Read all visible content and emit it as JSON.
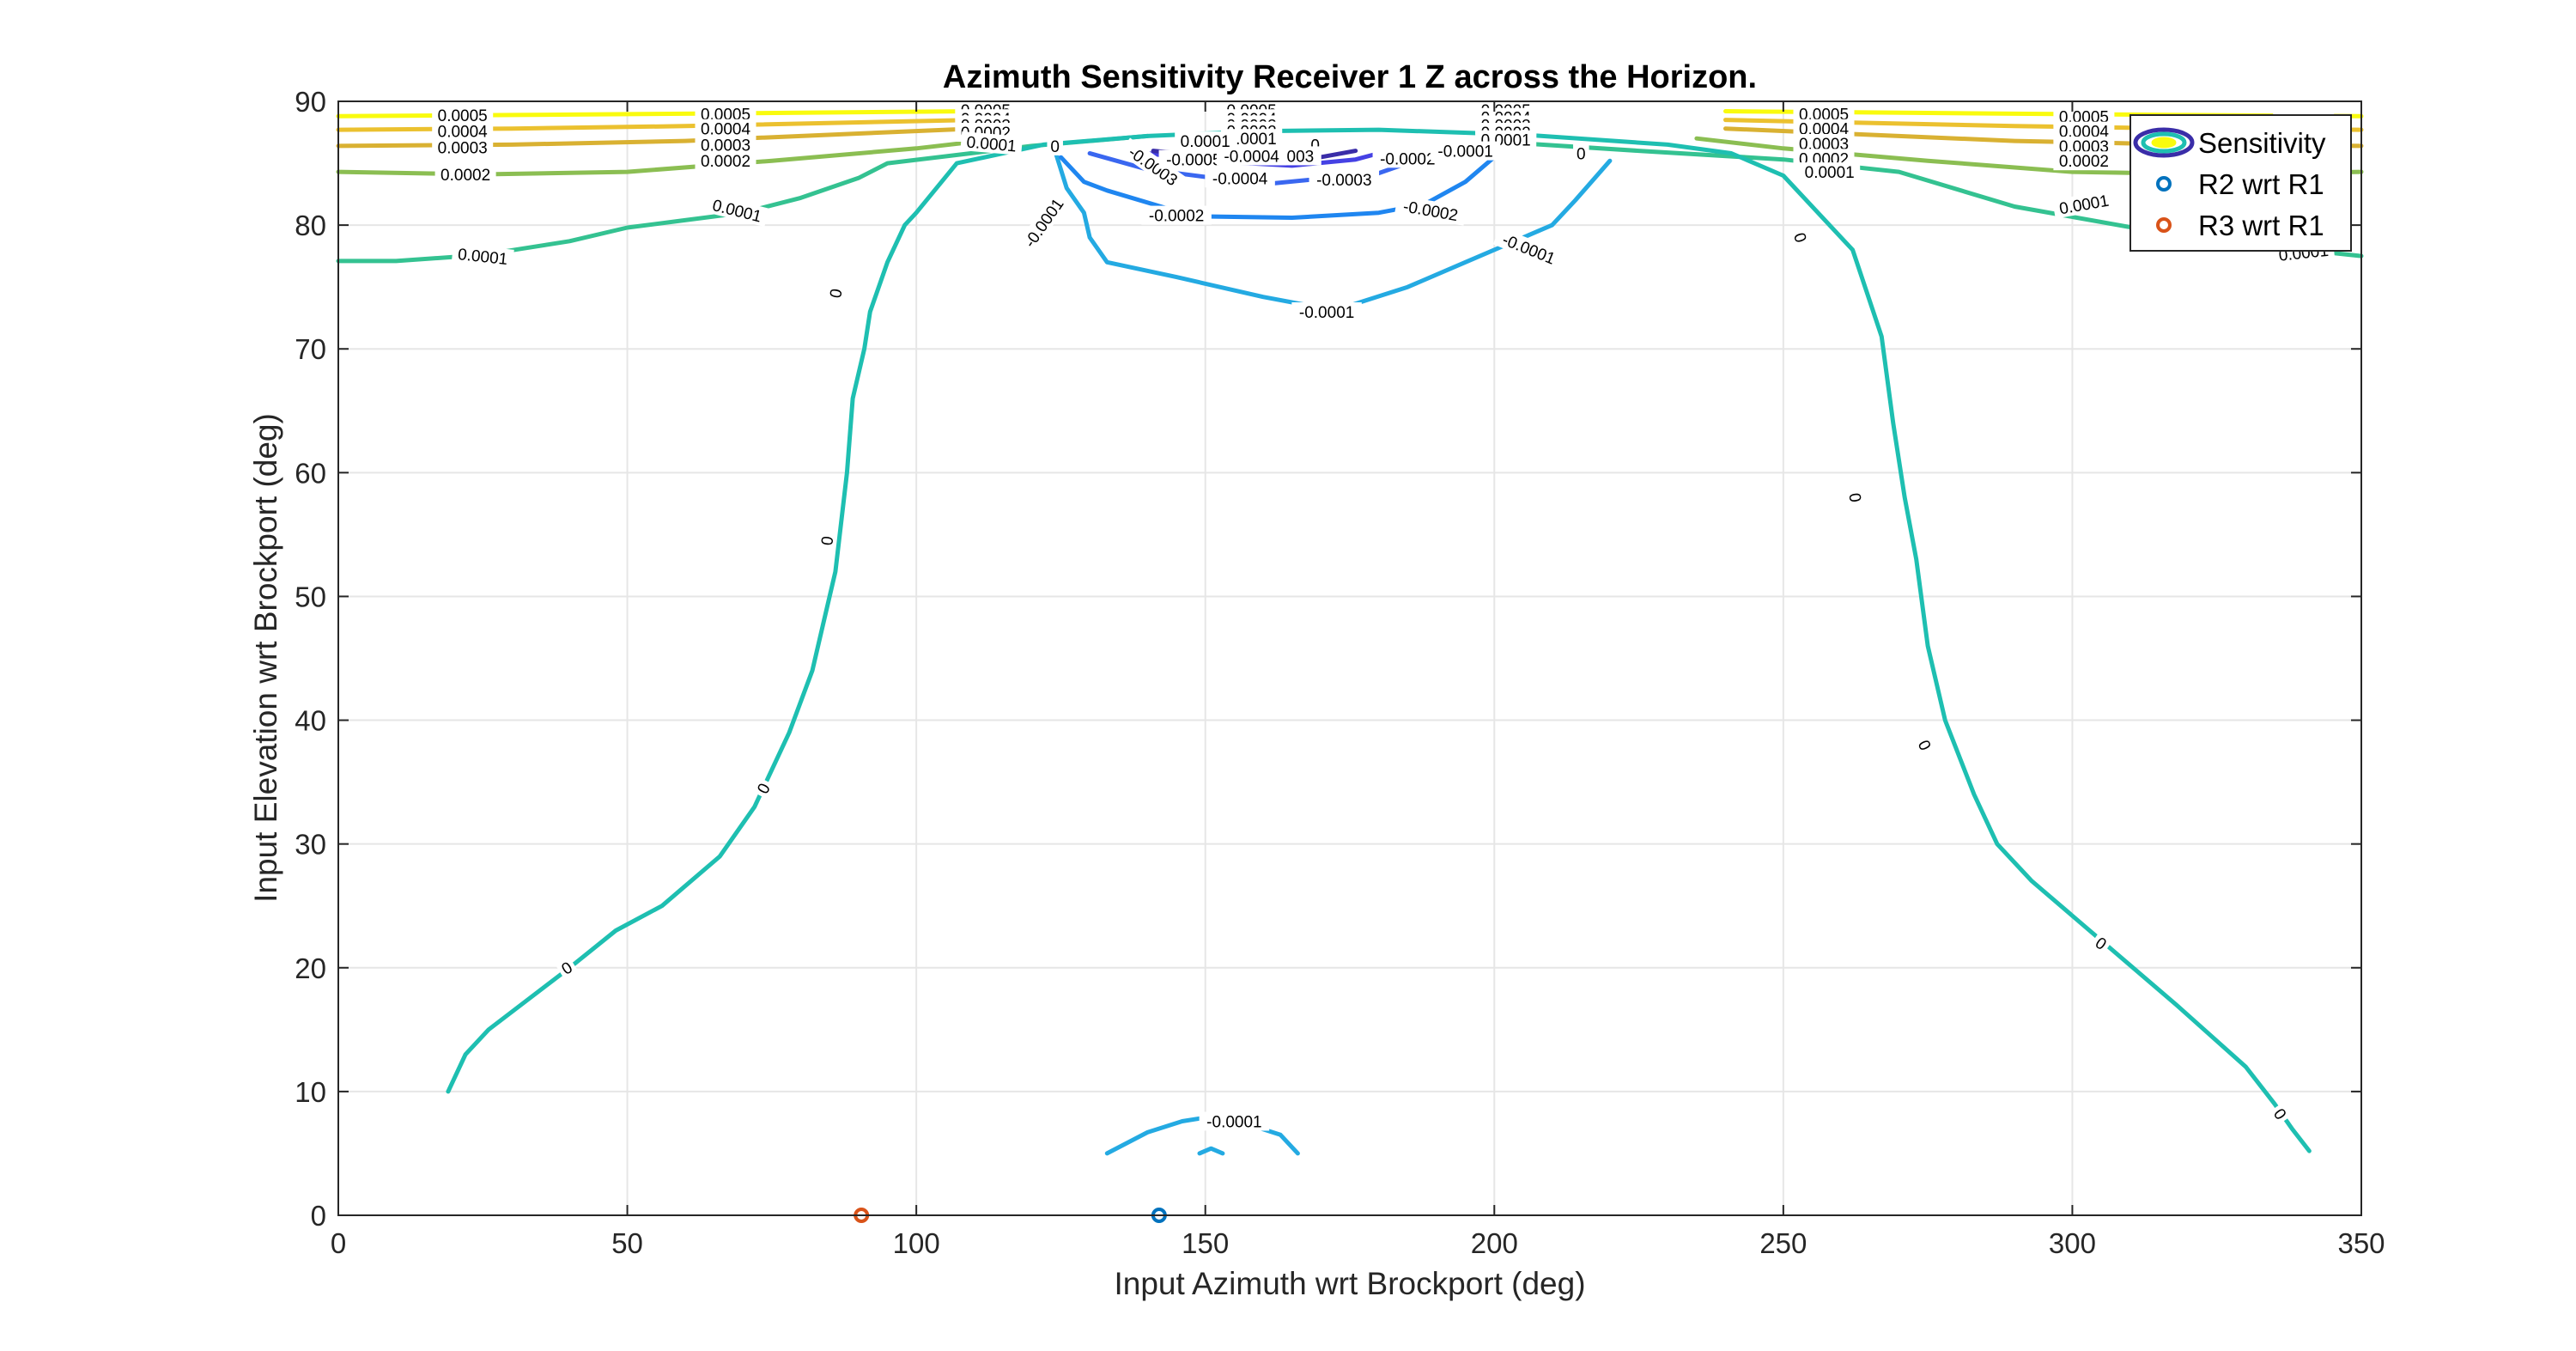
{
  "chart_data": {
    "type": "contour",
    "title": "Azimuth Sensitivity Receiver 1 Z across the Horizon.",
    "xlabel": "Input Azimuth wrt Brockport (deg)",
    "ylabel": "Input Elevation wrt Brockport (deg)",
    "xlim": [
      0,
      350
    ],
    "ylim": [
      0,
      90
    ],
    "xticks": [
      0,
      50,
      100,
      150,
      200,
      250,
      300,
      350
    ],
    "yticks": [
      0,
      10,
      20,
      30,
      40,
      50,
      60,
      70,
      80,
      90
    ],
    "grid": true,
    "legend_position": "top-right",
    "legend": [
      {
        "label": "Sensitivity",
        "kind": "contour"
      },
      {
        "label": "R2 wrt R1",
        "kind": "marker",
        "color": "#0072bd"
      },
      {
        "label": "R3 wrt R1",
        "kind": "marker",
        "color": "#d95319"
      }
    ],
    "contours": [
      {
        "level": "0.0005",
        "color": "#f9fb0e",
        "lines": [
          [
            [
              0,
              88.8
            ],
            [
              30,
              88.9
            ],
            [
              60,
              89.0
            ],
            [
              110,
              89.2
            ]
          ],
          [
            [
              350,
              88.8
            ],
            [
              320,
              88.9
            ],
            [
              290,
              89.0
            ],
            [
              240,
              89.2
            ]
          ]
        ]
      },
      {
        "level": "0.0004",
        "color": "#ebc12f",
        "lines": [
          [
            [
              0,
              87.7
            ],
            [
              30,
              87.8
            ],
            [
              60,
              88.0
            ],
            [
              110,
              88.5
            ]
          ],
          [
            [
              350,
              87.7
            ],
            [
              320,
              87.8
            ],
            [
              290,
              88.0
            ],
            [
              240,
              88.5
            ]
          ]
        ]
      },
      {
        "level": "0.0003",
        "color": "#d9b132",
        "lines": [
          [
            [
              0,
              86.4
            ],
            [
              30,
              86.5
            ],
            [
              60,
              86.8
            ],
            [
              110,
              87.8
            ]
          ],
          [
            [
              350,
              86.4
            ],
            [
              320,
              86.5
            ],
            [
              290,
              86.8
            ],
            [
              240,
              87.8
            ]
          ]
        ]
      },
      {
        "level": "0.0002",
        "color": "#8bbe52",
        "lines": [
          [
            [
              0,
              84.3
            ],
            [
              25,
              84.1
            ],
            [
              50,
              84.3
            ],
            [
              75,
              85.2
            ],
            [
              100,
              86.2
            ],
            [
              115,
              87.0
            ]
          ],
          [
            [
              350,
              84.3
            ],
            [
              325,
              84.1
            ],
            [
              300,
              84.3
            ],
            [
              275,
              85.2
            ],
            [
              250,
              86.2
            ],
            [
              235,
              87.0
            ]
          ]
        ]
      },
      {
        "level": "0.0001",
        "color": "#34c291",
        "lines": [
          [
            [
              0,
              77.1
            ],
            [
              10,
              77.1
            ],
            [
              25,
              77.6
            ],
            [
              40,
              78.7
            ],
            [
              50,
              79.8
            ],
            [
              70,
              81.0
            ],
            [
              80,
              82.2
            ],
            [
              90,
              83.8
            ],
            [
              95,
              85.0
            ],
            [
              120,
              86.4
            ],
            [
              140,
              87.2
            ]
          ],
          [
            [
              350,
              77.5
            ],
            [
              320,
              79.0
            ],
            [
              290,
              81.5
            ],
            [
              270,
              84.3
            ],
            [
              250,
              85.3
            ],
            [
              225,
              86.0
            ],
            [
              205,
              86.6
            ]
          ]
        ]
      },
      {
        "level": "0",
        "color": "#1ebfb1",
        "lines": [
          [
            [
              19,
              10
            ],
            [
              22,
              13
            ],
            [
              26,
              15
            ],
            [
              40,
              20
            ],
            [
              48,
              23
            ],
            [
              56,
              25
            ],
            [
              66,
              29
            ],
            [
              72,
              33
            ],
            [
              78,
              39
            ],
            [
              82,
              44
            ],
            [
              84,
              48
            ],
            [
              86,
              52
            ],
            [
              88,
              60
            ],
            [
              89,
              66
            ],
            [
              91,
              70
            ],
            [
              92,
              73
            ],
            [
              95,
              77
            ],
            [
              98,
              80
            ],
            [
              100,
              81
            ],
            [
              107,
              85
            ],
            [
              122,
              86.5
            ],
            [
              140,
              87.2
            ],
            [
              160,
              87.6
            ],
            [
              180,
              87.7
            ],
            [
              205,
              87.3
            ],
            [
              230,
              86.5
            ],
            [
              241,
              85.8
            ],
            [
              250,
              84
            ],
            [
              256,
              81
            ],
            [
              262,
              78
            ],
            [
              267,
              71
            ],
            [
              269,
              64
            ],
            [
              271,
              58
            ],
            [
              273,
              53
            ],
            [
              275,
              46
            ],
            [
              278,
              40
            ],
            [
              283,
              34
            ],
            [
              287,
              30
            ],
            [
              293,
              27
            ],
            [
              303,
              23
            ],
            [
              318,
              17
            ],
            [
              330,
              12
            ],
            [
              335,
              9
            ],
            [
              338,
              7
            ],
            [
              341,
              5.2
            ]
          ]
        ]
      },
      {
        "level": "-0.0001",
        "color": "#24aae2",
        "lines": [
          [
            [
              124,
              86
            ],
            [
              126,
              83
            ],
            [
              129,
              81
            ],
            [
              130,
              79
            ],
            [
              133,
              77
            ],
            [
              145,
              75.8
            ],
            [
              160,
              74.2
            ],
            [
              168,
              73.5
            ],
            [
              175,
              73.5
            ],
            [
              185,
              75
            ],
            [
              195,
              77
            ],
            [
              210,
              80
            ],
            [
              214,
              82
            ],
            [
              220,
              85.2
            ]
          ],
          [
            [
              133,
              5
            ],
            [
              140,
              6.7
            ],
            [
              146,
              7.6
            ],
            [
              150,
              7.9
            ],
            [
              155,
              7.7
            ],
            [
              163,
              6.5
            ],
            [
              166,
              5
            ]
          ],
          [
            [
              149,
              5
            ],
            [
              151,
              5.4
            ],
            [
              153,
              5
            ]
          ]
        ]
      },
      {
        "level": "-0.0002",
        "color": "#1f86f0",
        "lines": [
          [
            [
              125,
              85.5
            ],
            [
              129,
              83.5
            ],
            [
              133,
              82.8
            ],
            [
              143,
              81.4
            ],
            [
              150,
              80.7
            ],
            [
              165,
              80.6
            ],
            [
              180,
              81
            ],
            [
              188,
              81.7
            ],
            [
              195,
              83.5
            ],
            [
              200,
              85.5
            ]
          ]
        ]
      },
      {
        "level": "-0.0003",
        "color": "#3a67f0",
        "lines": [
          [
            [
              130,
              85.8
            ],
            [
              140,
              84.5
            ],
            [
              160,
              83.3
            ],
            [
              180,
              84.2
            ],
            [
              188,
              85.5
            ]
          ]
        ]
      },
      {
        "level": "-0.0004",
        "color": "#4541e4",
        "lines": [
          [
            [
              140,
              85.8
            ],
            [
              150,
              85.2
            ],
            [
              165,
              84.8
            ],
            [
              176,
              85.3
            ],
            [
              180,
              85.8
            ]
          ]
        ]
      },
      {
        "level": "-0.0005",
        "color": "#3a2da8",
        "lines": [
          [
            [
              141,
              86
            ],
            [
              150,
              85.6
            ],
            [
              160,
              85.2
            ],
            [
              170,
              85.5
            ],
            [
              176,
              86
            ]
          ]
        ]
      }
    ],
    "contour_labels": [
      {
        "text": "0.0005",
        "x": 21.5,
        "y": 88.9,
        "angle": 0
      },
      {
        "text": "0.0004",
        "x": 21.5,
        "y": 87.6,
        "angle": 0
      },
      {
        "text": "0.0003",
        "x": 21.5,
        "y": 86.3,
        "angle": 0
      },
      {
        "text": "0.0002",
        "x": 22,
        "y": 84.1,
        "angle": 0
      },
      {
        "text": "0.0001",
        "x": 25,
        "y": 77.5,
        "angle": -6
      },
      {
        "text": "0.0005",
        "x": 67,
        "y": 89.0,
        "angle": 0
      },
      {
        "text": "0.0004",
        "x": 67,
        "y": 87.8,
        "angle": 0
      },
      {
        "text": "0.0003",
        "x": 67,
        "y": 86.5,
        "angle": 0
      },
      {
        "text": "0.0002",
        "x": 67,
        "y": 85.2,
        "angle": 0
      },
      {
        "text": "0.0001",
        "x": 69,
        "y": 81.2,
        "angle": -14
      },
      {
        "text": "0.0005",
        "x": 112,
        "y": 89.3,
        "angle": 0
      },
      {
        "text": "0.0004",
        "x": 112,
        "y": 88.6,
        "angle": 0
      },
      {
        "text": "0.0003",
        "x": 112,
        "y": 88.1,
        "angle": 0
      },
      {
        "text": "0.0002",
        "x": 112,
        "y": 87.5,
        "angle": 0
      },
      {
        "text": "0.0001",
        "x": 113,
        "y": 86.6,
        "angle": -5
      },
      {
        "text": "0",
        "x": 124,
        "y": 86.4,
        "angle": 0
      },
      {
        "text": "0.0005",
        "x": 158,
        "y": 89.3,
        "angle": 0
      },
      {
        "text": "0.0004",
        "x": 158,
        "y": 88.6,
        "angle": 0
      },
      {
        "text": "0.0003",
        "x": 158,
        "y": 88.1,
        "angle": 0
      },
      {
        "text": "0.0002",
        "x": 158,
        "y": 87.6,
        "angle": 0
      },
      {
        "text": "0.0001",
        "x": 158,
        "y": 87.0,
        "angle": 0
      },
      {
        "text": "0",
        "x": 169,
        "y": 86.5,
        "angle": 0
      },
      {
        "text": "0.0005",
        "x": 202,
        "y": 89.3,
        "angle": 0
      },
      {
        "text": "0.0004",
        "x": 202,
        "y": 88.7,
        "angle": 0
      },
      {
        "text": "0.0003",
        "x": 202,
        "y": 88.1,
        "angle": 0
      },
      {
        "text": "0.0002",
        "x": 202,
        "y": 87.5,
        "angle": 0
      },
      {
        "text": "0.0001",
        "x": 202,
        "y": 86.9,
        "angle": 0
      },
      {
        "text": "0",
        "x": 215,
        "y": 85.8,
        "angle": 0
      },
      {
        "text": "0.0005",
        "x": 257,
        "y": 89.0,
        "angle": 0
      },
      {
        "text": "0.0004",
        "x": 257,
        "y": 87.8,
        "angle": 0
      },
      {
        "text": "0.0003",
        "x": 257,
        "y": 86.6,
        "angle": 0
      },
      {
        "text": "0.0002",
        "x": 257,
        "y": 85.4,
        "angle": 0
      },
      {
        "text": "0.0001",
        "x": 258,
        "y": 84.3,
        "angle": 0
      },
      {
        "text": "0.0005",
        "x": 302,
        "y": 88.8,
        "angle": 0
      },
      {
        "text": "0.0004",
        "x": 302,
        "y": 87.6,
        "angle": 0
      },
      {
        "text": "0.0003",
        "x": 302,
        "y": 86.4,
        "angle": 0
      },
      {
        "text": "0.0002",
        "x": 302,
        "y": 85.2,
        "angle": 0
      },
      {
        "text": "0.0001",
        "x": 302,
        "y": 81.7,
        "angle": 10
      },
      {
        "text": "0.0005",
        "x": 340,
        "y": 88.5,
        "angle": 0
      },
      {
        "text": "0.0001",
        "x": 340,
        "y": 77.8,
        "angle": 6
      },
      {
        "text": "-0.0001",
        "x": 122,
        "y": 80.2,
        "angle": 55
      },
      {
        "text": "-0.0001",
        "x": 171,
        "y": 73.0,
        "angle": 0
      },
      {
        "text": "-0.0001",
        "x": 206,
        "y": 78.1,
        "angle": -22
      },
      {
        "text": "-0.0002",
        "x": 145,
        "y": 80.8,
        "angle": 0
      },
      {
        "text": "-0.0002",
        "x": 189,
        "y": 81.2,
        "angle": -10
      },
      {
        "text": "-0.0003",
        "x": 141,
        "y": 84.8,
        "angle": -35
      },
      {
        "text": "-0.0003",
        "x": 174,
        "y": 83.7,
        "angle": 0
      },
      {
        "text": "-0.0003",
        "x": 164,
        "y": 85.6,
        "angle": 0
      },
      {
        "text": "-0.0002",
        "x": 185,
        "y": 85.4,
        "angle": 0
      },
      {
        "text": "-0.0001",
        "x": 195,
        "y": 86.0,
        "angle": 0
      },
      {
        "text": "-0.0004",
        "x": 156,
        "y": 83.8,
        "angle": 0
      },
      {
        "text": "-0.0005",
        "x": 148,
        "y": 85.3,
        "angle": 0
      },
      {
        "text": "-0.0004",
        "x": 158,
        "y": 85.6,
        "angle": 0
      },
      {
        "text": "0.0001",
        "x": 150,
        "y": 86.8,
        "angle": 0
      },
      {
        "text": "0",
        "x": 86,
        "y": 74.5,
        "angle": 80
      },
      {
        "text": "0",
        "x": 84.5,
        "y": 54.5,
        "angle": 82
      },
      {
        "text": "0",
        "x": 73.5,
        "y": 34.5,
        "angle": 62
      },
      {
        "text": "0",
        "x": 39.5,
        "y": 20.0,
        "angle": 33
      },
      {
        "text": "0",
        "x": 253,
        "y": 79,
        "angle": -72
      },
      {
        "text": "0",
        "x": 262.5,
        "y": 58,
        "angle": -82
      },
      {
        "text": "0",
        "x": 274.5,
        "y": 38,
        "angle": -65
      },
      {
        "text": "0",
        "x": 305,
        "y": 22,
        "angle": -35
      },
      {
        "text": "0",
        "x": 336,
        "y": 8.2,
        "angle": -55
      },
      {
        "text": "-0.0001",
        "x": 155,
        "y": 7.6,
        "angle": 0
      }
    ],
    "markers": [
      {
        "name": "R2 wrt R1",
        "x": 142,
        "y": 0,
        "color": "#0072bd"
      },
      {
        "name": "R3 wrt R1",
        "x": 90.5,
        "y": 0,
        "color": "#d95319"
      }
    ]
  }
}
